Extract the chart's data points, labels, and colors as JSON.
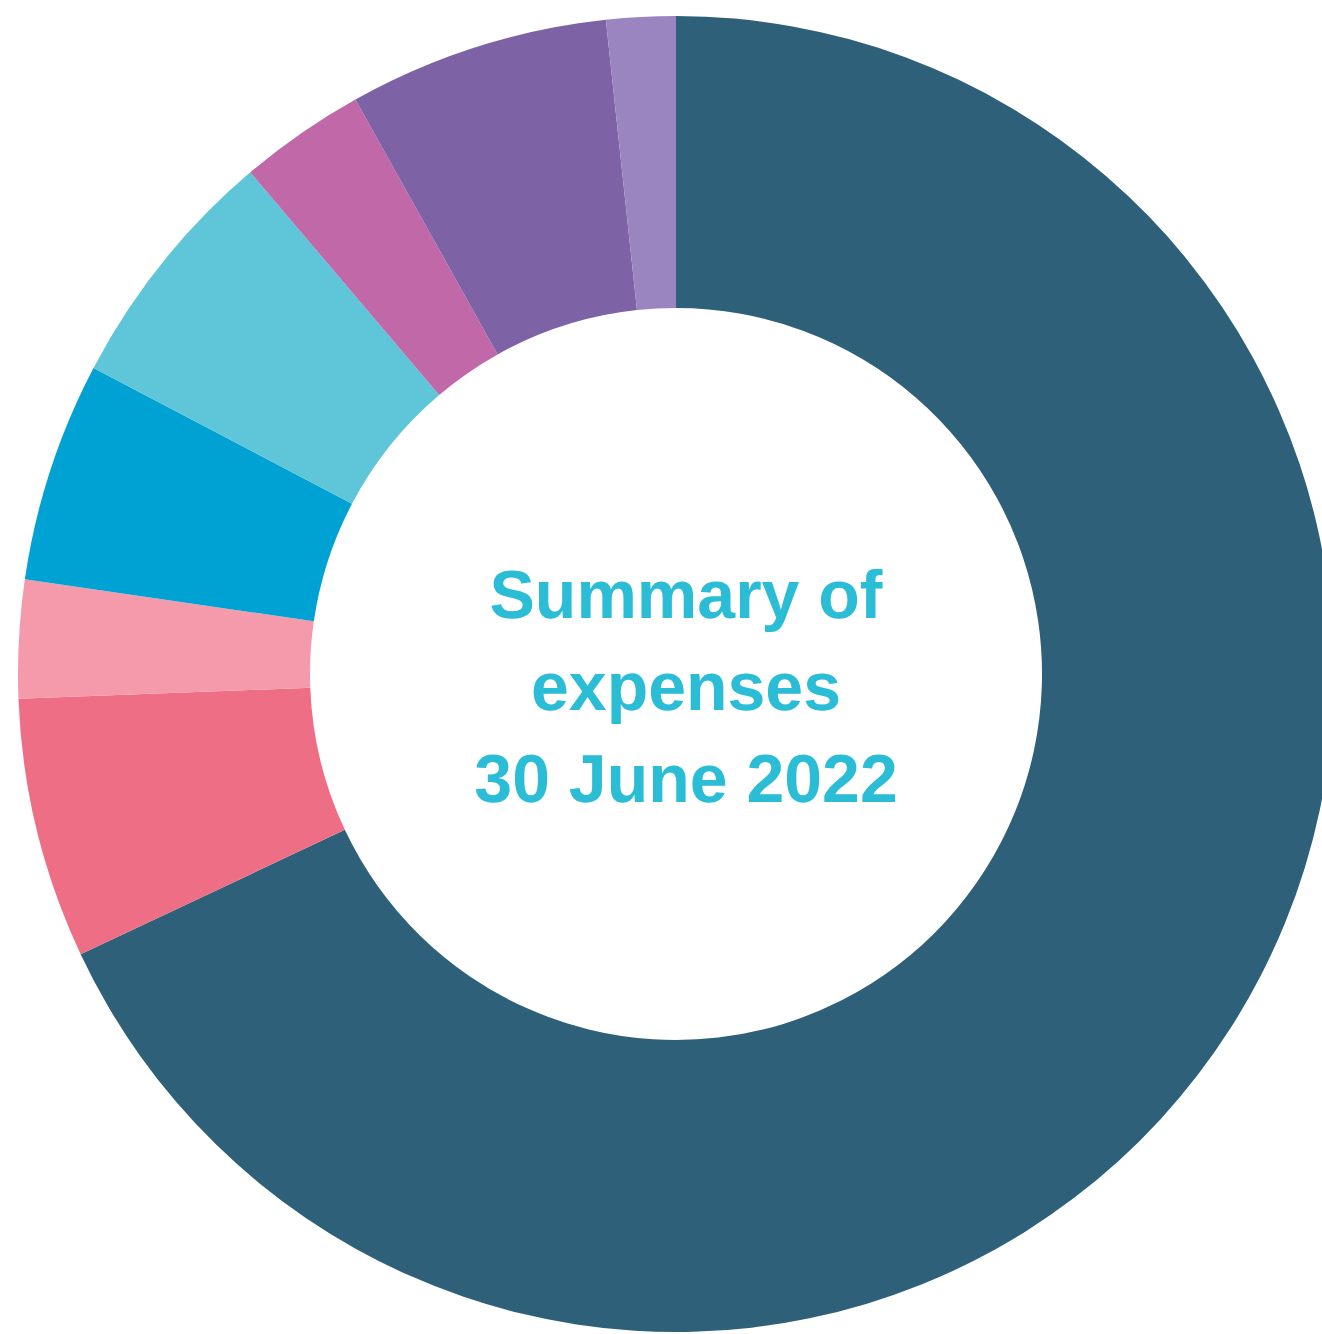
{
  "chart_data": {
    "type": "donut",
    "title": "Summary of\nexpenses\n30 June 2022",
    "categories": [
      null,
      null,
      null,
      null,
      null,
      null,
      null,
      null
    ],
    "values": [
      68,
      6.4,
      2.9,
      5.4,
      6.1,
      3.1,
      6.4,
      1.7
    ],
    "colors": [
      "#2e6079",
      "#ee6e85",
      "#f49aab",
      "#00a2d3",
      "#5fc5d8",
      "#c068a8",
      "#7e62a6",
      "#9a85c0"
    ]
  }
}
